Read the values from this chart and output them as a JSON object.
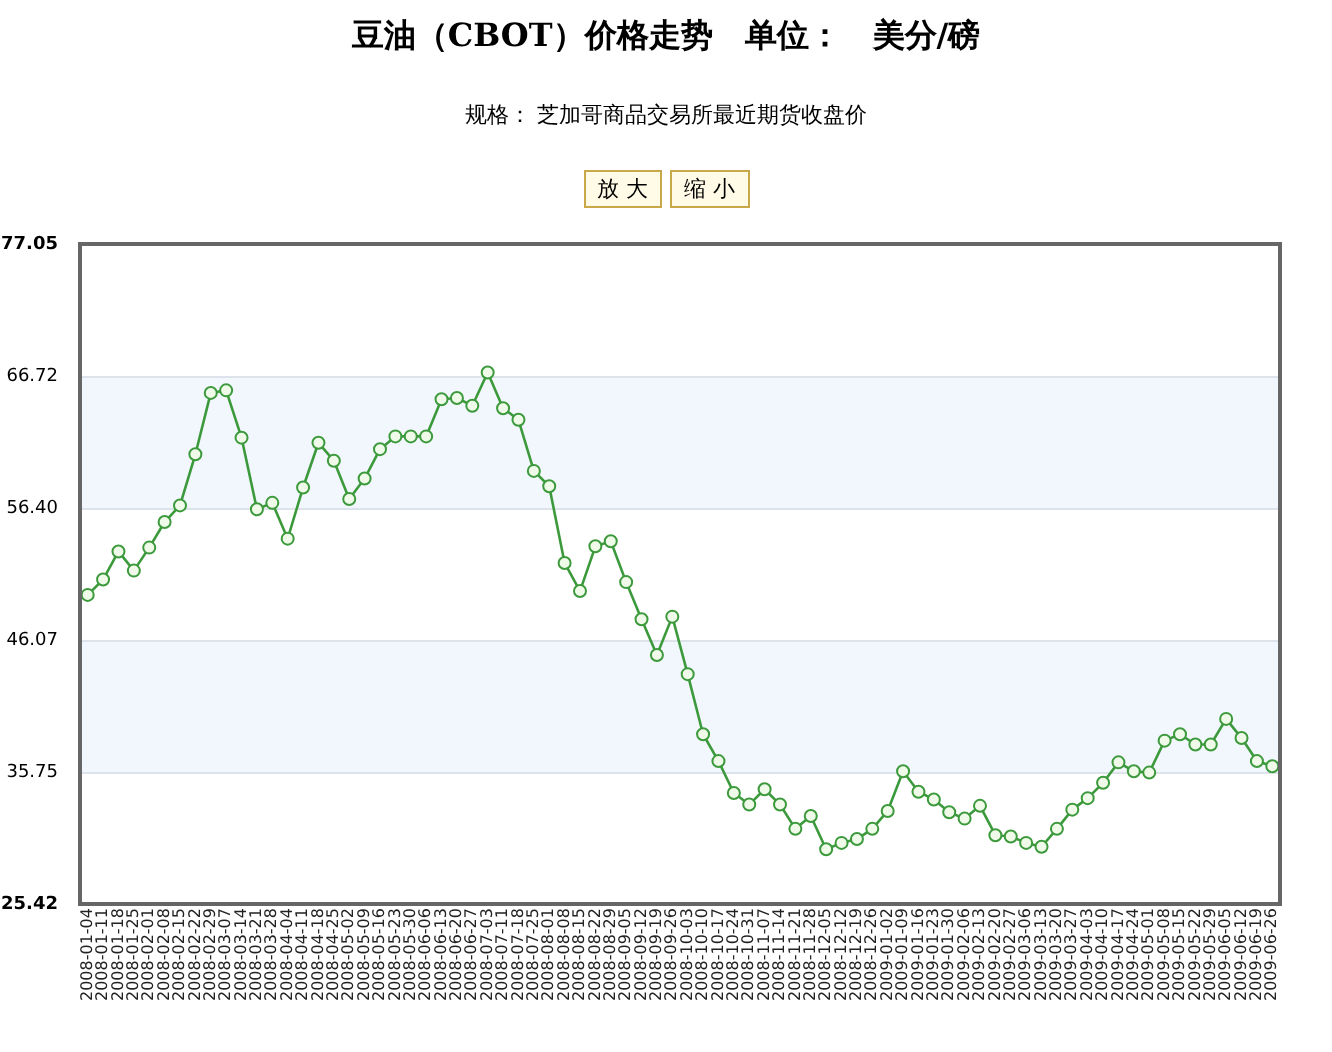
{
  "chart_data": {
    "type": "line",
    "title": "豆油（CBOT）价格走势　单位：　美分/磅",
    "subtitle": "规格： 芝加哥商品交易所最近期货收盘价",
    "annotations": [
      "放 大",
      "缩 小"
    ],
    "categories": [
      "2008-01-04",
      "2008-01-11",
      "2008-01-18",
      "2008-01-25",
      "2008-02-01",
      "2008-02-08",
      "2008-02-15",
      "2008-02-22",
      "2008-02-29",
      "2008-03-07",
      "2008-03-14",
      "2008-03-21",
      "2008-03-28",
      "2008-04-04",
      "2008-04-11",
      "2008-04-18",
      "2008-04-25",
      "2008-05-02",
      "2008-05-09",
      "2008-05-16",
      "2008-05-23",
      "2008-05-30",
      "2008-06-06",
      "2008-06-13",
      "2008-06-20",
      "2008-06-27",
      "2008-07-03",
      "2008-07-11",
      "2008-07-18",
      "2008-07-25",
      "2008-08-01",
      "2008-08-08",
      "2008-08-15",
      "2008-08-22",
      "2008-08-29",
      "2008-09-05",
      "2008-09-12",
      "2008-09-19",
      "2008-09-26",
      "2008-10-03",
      "2008-10-10",
      "2008-10-17",
      "2008-10-24",
      "2008-10-31",
      "2008-11-07",
      "2008-11-14",
      "2008-11-21",
      "2008-11-28",
      "2008-12-05",
      "2008-12-12",
      "2008-12-19",
      "2008-12-26",
      "2009-01-02",
      "2009-01-09",
      "2009-01-16",
      "2009-01-23",
      "2009-01-30",
      "2009-02-06",
      "2009-02-13",
      "2009-02-20",
      "2009-02-27",
      "2009-03-06",
      "2009-03-13",
      "2009-03-20",
      "2009-03-27",
      "2009-04-03",
      "2009-04-10",
      "2009-04-17",
      "2009-04-24",
      "2009-05-01",
      "2009-05-08",
      "2009-05-15",
      "2009-05-22",
      "2009-05-29",
      "2009-06-05",
      "2009-06-12",
      "2009-06-19",
      "2009-06-26"
    ],
    "series": [
      {
        "color": "#3c9a3c",
        "values": [
          49.6,
          50.8,
          53.0,
          51.5,
          53.3,
          55.3,
          56.6,
          60.6,
          65.4,
          65.6,
          61.9,
          56.3,
          56.8,
          54.0,
          58.0,
          61.5,
          60.1,
          57.1,
          58.7,
          61.0,
          62.0,
          62.0,
          62.0,
          64.9,
          65.0,
          64.4,
          67.0,
          64.2,
          63.3,
          59.3,
          58.1,
          52.1,
          49.9,
          53.4,
          53.8,
          50.6,
          47.7,
          44.9,
          47.9,
          43.4,
          38.7,
          36.6,
          34.1,
          33.2,
          34.4,
          33.2,
          31.3,
          32.3,
          29.7,
          30.2,
          30.5,
          31.3,
          32.7,
          35.8,
          34.2,
          33.6,
          32.6,
          32.1,
          33.1,
          30.8,
          30.7,
          30.2,
          29.9,
          31.3,
          32.8,
          33.7,
          34.9,
          36.5,
          35.8,
          35.7,
          38.2,
          38.7,
          37.9,
          37.9,
          39.9,
          38.4,
          36.6,
          36.2
        ]
      }
    ],
    "ylim": [
      25.42,
      77.05
    ],
    "yticks": [
      25.42,
      35.75,
      46.07,
      {
        "value": 56.4,
        "label": "56.40"
      },
      66.72,
      77.05
    ],
    "bands": [
      {
        "axis": "y",
        "from": 35.75,
        "to": 46.07,
        "color": "#f2f7fd"
      },
      {
        "axis": "y",
        "from": 56.4,
        "to": 66.72,
        "color": "#f2f7fd"
      }
    ],
    "grid": "y",
    "marker": "circle",
    "line_style": "solid",
    "legend": false
  }
}
